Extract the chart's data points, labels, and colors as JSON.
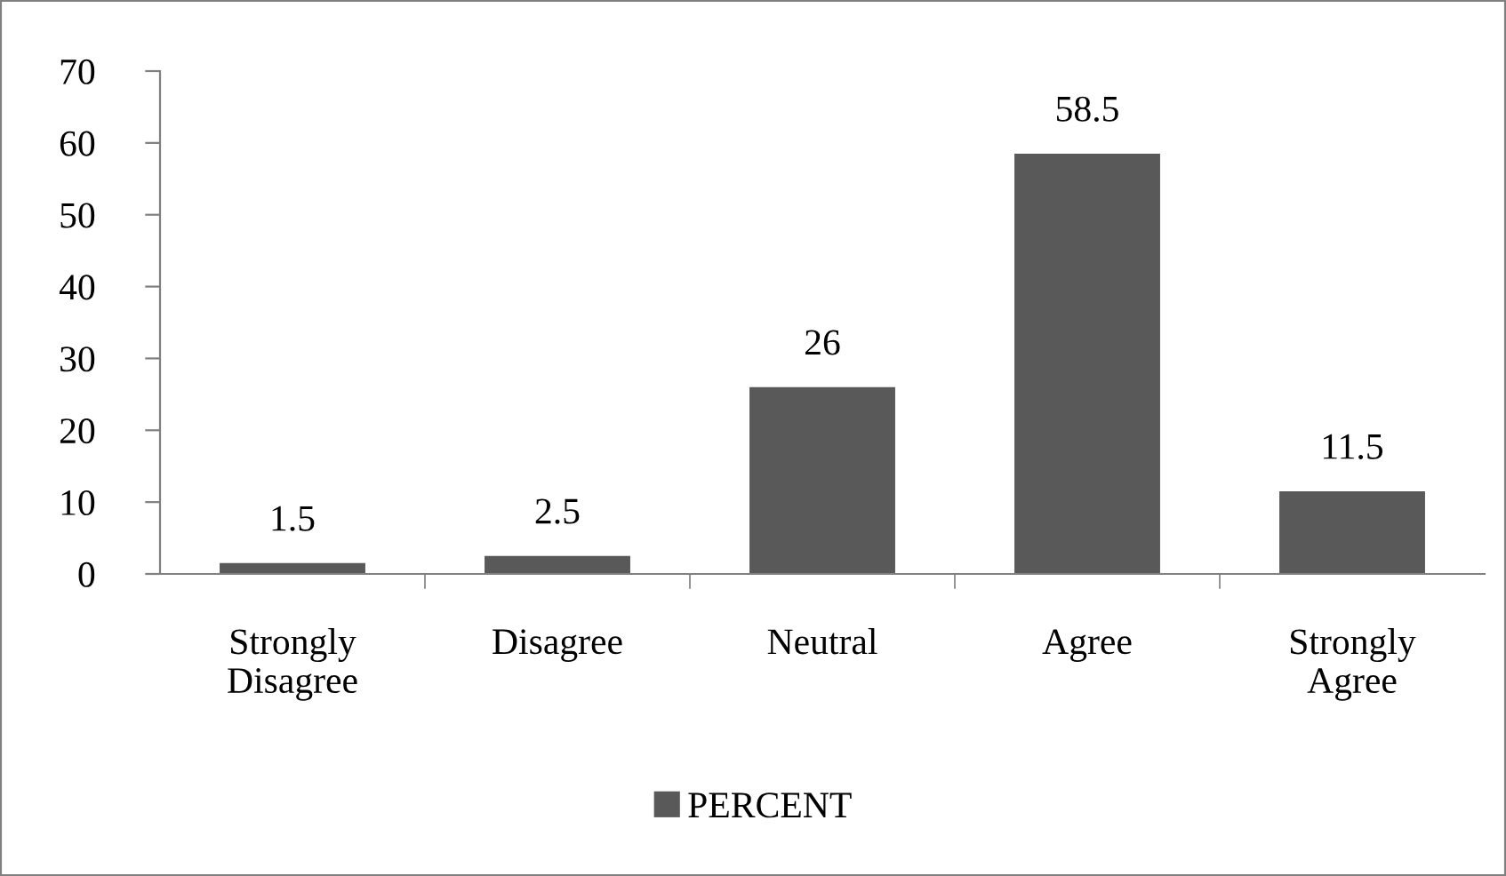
{
  "chart_data": {
    "type": "bar",
    "categories": [
      "Strongly\nDisagree",
      "Disagree",
      "Neutral",
      "Agree",
      "Strongly\nAgree"
    ],
    "series": [
      {
        "name": "PERCENT",
        "color": "#595959",
        "values": [
          1.5,
          2.5,
          26,
          58.5,
          11.5
        ]
      }
    ],
    "ylim": [
      0,
      70
    ],
    "yticks": [
      0,
      10,
      20,
      30,
      40,
      50,
      60,
      70
    ],
    "data_labels": true,
    "grid": false,
    "legend": "bottom"
  }
}
